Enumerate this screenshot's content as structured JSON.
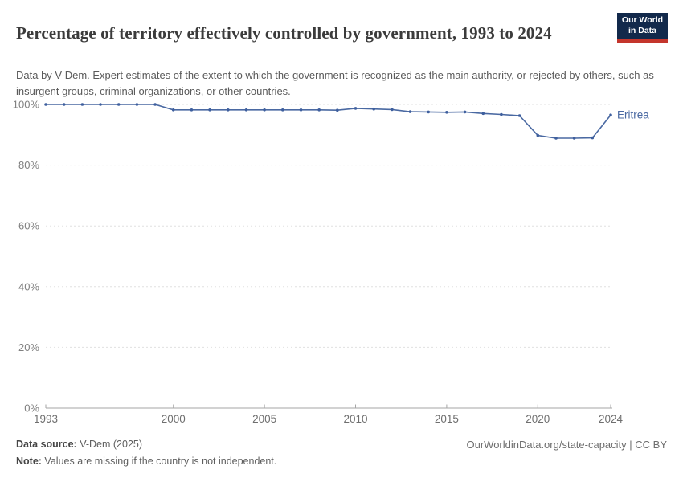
{
  "header": {
    "title": "Percentage of territory effectively controlled by government, 1993 to 2024",
    "subtitle": "Data by V-Dem. Expert estimates of the extent to which the government is recognized as the main authority, or rejected by others, such as insurgent groups, criminal organizations, or other countries.",
    "logo": {
      "line1": "Our World",
      "line2": "in Data",
      "bg_color": "#12294b",
      "bar_color": "#c4352c"
    }
  },
  "chart_data": {
    "type": "line",
    "title": "Percentage of territory effectively controlled by government, 1993 to 2024",
    "xlabel": "",
    "ylabel": "",
    "xlim": [
      1993,
      2024
    ],
    "ylim": [
      0,
      100
    ],
    "grid": "horizontal-dashed",
    "legend_position": "end-of-line-label",
    "x_ticks": [
      1993,
      2000,
      2005,
      2010,
      2015,
      2020,
      2024
    ],
    "y_ticks": [
      {
        "value": 0,
        "label": "0%"
      },
      {
        "value": 20,
        "label": "20%"
      },
      {
        "value": 40,
        "label": "40%"
      },
      {
        "value": 60,
        "label": "60%"
      },
      {
        "value": 80,
        "label": "80%"
      },
      {
        "value": 100,
        "label": "100%"
      }
    ],
    "series": [
      {
        "name": "Eritrea",
        "color": "#4a69a2",
        "marker_color": "#3e5f9e",
        "x": [
          1993,
          1994,
          1995,
          1996,
          1997,
          1998,
          1999,
          2000,
          2001,
          2002,
          2003,
          2004,
          2005,
          2006,
          2007,
          2008,
          2009,
          2010,
          2011,
          2012,
          2013,
          2014,
          2015,
          2016,
          2017,
          2018,
          2019,
          2020,
          2021,
          2022,
          2023,
          2024
        ],
        "values": [
          100,
          100,
          100,
          100,
          100,
          100,
          100,
          98.2,
          98.2,
          98.2,
          98.2,
          98.2,
          98.2,
          98.2,
          98.2,
          98.2,
          98.1,
          98.7,
          98.5,
          98.3,
          97.6,
          97.5,
          97.4,
          97.5,
          97.0,
          96.7,
          96.3,
          89.8,
          88.9,
          88.9,
          89.0,
          96.5
        ]
      }
    ],
    "colors": {
      "gridline": "#e0e0e0",
      "axis_line": "#a5a5a5",
      "y_tick_label": "#808080",
      "x_tick_label": "#6f6f6f"
    }
  },
  "footer": {
    "datasource_label": "Data source:",
    "datasource_value": " V-Dem (2025)",
    "note_label": "Note:",
    "note_value": " Values are missing if the country is not independent.",
    "link": "OurWorldinData.org/state-capacity | CC BY"
  }
}
